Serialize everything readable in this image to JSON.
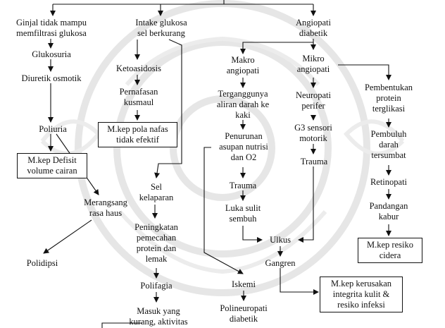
{
  "nodes": {
    "ginjal": "Ginjal tidak mampu\nmemfiltrasi glukosa",
    "intake": "Intake glukosa\nsel berkurang",
    "angiopati": "Angiopati\ndiabetik",
    "glukosuria": "Glukosuria",
    "diuretik": "Diuretik osmotik",
    "poliuria": "Poliuria",
    "mkep_defisit": "M.kep Defisit\nvolume cairan",
    "merangsang": "Merangsang\nrasa haus",
    "polidipsi": "Polidipsi",
    "ketoasidosis": "Ketoasidosis",
    "pernafasan": "Pernafasan\nkusmaul",
    "mkep_pola": "M.kep pola nafas\ntidak efektif",
    "sel_kelaparan": "Sel\nkelaparan",
    "peningkatan": "Peningkatan\npemecahan\nprotein dan\nlemak",
    "polifagia": "Polifagia",
    "masuk": "Masuk yang\nkurang, aktivitas",
    "makro": "Makro\nangiopati",
    "terganggunya": "Terganggunya\naliran darah ke\nkaki",
    "penurunan": "Penurunan\nasupan nutrisi\ndan O2",
    "trauma1": "Trauma",
    "luka": "Luka sulit\nsembuh",
    "ulkus": "Ulkus",
    "gangren": "Gangren",
    "iskemi": "Iskemi",
    "polineuropati": "Polineuropati\ndiabetik",
    "mikro": "Mikro\nangiopati",
    "neuropati": "Neuropati\nperifer",
    "g3": "G3 sensori\nmotorik",
    "trauma2": "Trauma",
    "mkep_kerusakan": "M.kep kerusakan\nintegrita kulit &\nresiko infeksi",
    "pembentukan": "Pembentukan\nprotein\nterglikasi",
    "pembuluh": "Pembuluh\ndarah\ntersumbat",
    "retinopati": "Retinopati",
    "pandangan": "Pandangan\nkabur",
    "mkep_resiko": "M.kep resiko\ncidera"
  },
  "colors": {
    "line": "#111111",
    "watermark": "#e6e6e6",
    "background": "#ffffff"
  }
}
